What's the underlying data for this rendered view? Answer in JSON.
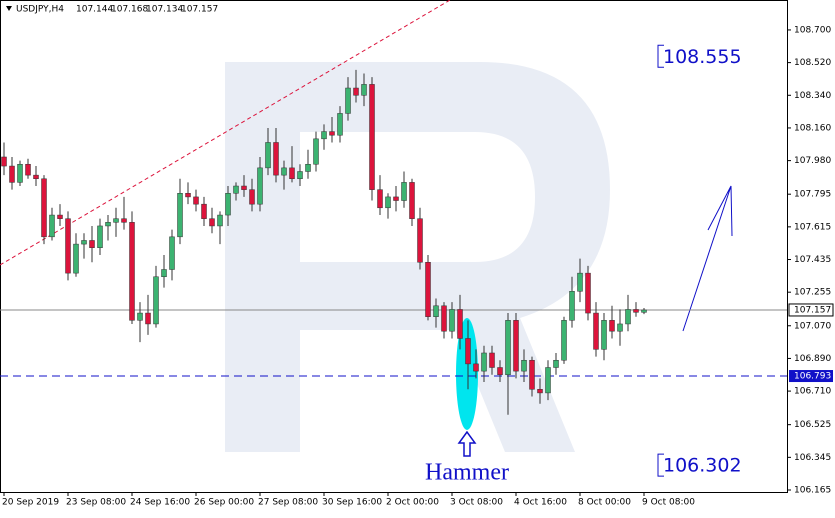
{
  "chart_data": {
    "type": "candlestick",
    "title": "USDJPY,H4",
    "categories": [
      "20 Sep 2019",
      null,
      null,
      null,
      null,
      null,
      null,
      null,
      "23 Sep 08:00",
      null,
      null,
      null,
      null,
      null,
      null,
      null,
      "24 Sep 16:00",
      null,
      null,
      null,
      null,
      null,
      null,
      null,
      "26 Sep 00:00",
      null,
      null,
      null,
      null,
      null,
      null,
      null,
      "27 Sep 08:00",
      null,
      null,
      null,
      null,
      null,
      null,
      null,
      "30 Sep 16:00",
      null,
      null,
      null,
      null,
      null,
      null,
      null,
      "2 Oct 00:00",
      null,
      null,
      null,
      null,
      null,
      null,
      null,
      "3 Oct 08:00",
      null,
      null,
      null,
      null,
      null,
      null,
      null,
      "4 Oct 16:00",
      null,
      null,
      null,
      null,
      null,
      null,
      null,
      "8 Oct 00:00",
      null,
      null,
      null,
      null,
      null,
      null,
      null,
      "9 Oct 08:00"
    ],
    "ohlc": [
      [
        108.0,
        108.08,
        107.9,
        107.95
      ],
      [
        107.95,
        108.0,
        107.82,
        107.86
      ],
      [
        107.86,
        107.98,
        107.84,
        107.96
      ],
      [
        107.96,
        107.99,
        107.88,
        107.9
      ],
      [
        107.9,
        107.95,
        107.84,
        107.88
      ],
      [
        107.88,
        107.9,
        107.52,
        107.56
      ],
      [
        107.56,
        107.72,
        107.54,
        107.68
      ],
      [
        107.68,
        107.74,
        107.62,
        107.66
      ],
      [
        107.66,
        107.7,
        107.32,
        107.36
      ],
      [
        107.36,
        107.58,
        107.34,
        107.52
      ],
      [
        107.52,
        107.58,
        107.44,
        107.54
      ],
      [
        107.54,
        107.62,
        107.42,
        107.5
      ],
      [
        107.5,
        107.66,
        107.46,
        107.62
      ],
      [
        107.62,
        107.68,
        107.54,
        107.64
      ],
      [
        107.64,
        107.72,
        107.56,
        107.66
      ],
      [
        107.66,
        107.78,
        107.6,
        107.64
      ],
      [
        107.64,
        107.7,
        107.08,
        107.1
      ],
      [
        107.1,
        107.2,
        106.98,
        107.14
      ],
      [
        107.14,
        107.24,
        107.02,
        107.08
      ],
      [
        107.08,
        107.4,
        107.06,
        107.34
      ],
      [
        107.34,
        107.46,
        107.28,
        107.38
      ],
      [
        107.38,
        107.6,
        107.32,
        107.56
      ],
      [
        107.56,
        107.88,
        107.52,
        107.8
      ],
      [
        107.8,
        107.86,
        107.74,
        107.78
      ],
      [
        107.78,
        107.82,
        107.7,
        107.74
      ],
      [
        107.74,
        107.78,
        107.62,
        107.66
      ],
      [
        107.66,
        107.72,
        107.58,
        107.62
      ],
      [
        107.62,
        107.7,
        107.52,
        107.68
      ],
      [
        107.68,
        107.84,
        107.62,
        107.8
      ],
      [
        107.8,
        107.86,
        107.76,
        107.84
      ],
      [
        107.84,
        107.9,
        107.78,
        107.82
      ],
      [
        107.82,
        107.88,
        107.7,
        107.74
      ],
      [
        107.74,
        108.0,
        107.7,
        107.94
      ],
      [
        107.94,
        108.16,
        107.9,
        108.08
      ],
      [
        108.08,
        108.16,
        107.86,
        107.9
      ],
      [
        107.9,
        107.98,
        107.82,
        107.94
      ],
      [
        107.94,
        108.06,
        107.86,
        107.88
      ],
      [
        107.88,
        107.96,
        107.84,
        107.92
      ],
      [
        107.92,
        108.04,
        107.88,
        107.96
      ],
      [
        107.96,
        108.14,
        107.92,
        108.1
      ],
      [
        108.1,
        108.18,
        108.04,
        108.14
      ],
      [
        108.14,
        108.22,
        108.08,
        108.12
      ],
      [
        108.12,
        108.28,
        108.08,
        108.24
      ],
      [
        108.24,
        108.44,
        108.2,
        108.38
      ],
      [
        108.38,
        108.48,
        108.3,
        108.34
      ],
      [
        108.34,
        108.46,
        108.28,
        108.4
      ],
      [
        108.4,
        108.44,
        107.76,
        107.82
      ],
      [
        107.82,
        107.9,
        107.68,
        107.72
      ],
      [
        107.72,
        107.8,
        107.66,
        107.78
      ],
      [
        107.78,
        107.84,
        107.7,
        107.76
      ],
      [
        107.76,
        107.92,
        107.72,
        107.86
      ],
      [
        107.86,
        107.88,
        107.62,
        107.66
      ],
      [
        107.66,
        107.72,
        107.38,
        107.42
      ],
      [
        107.42,
        107.46,
        107.1,
        107.12
      ],
      [
        107.12,
        107.22,
        107.06,
        107.18
      ],
      [
        107.18,
        107.2,
        107.0,
        107.04
      ],
      [
        107.04,
        107.2,
        107.0,
        107.16
      ],
      [
        107.16,
        107.24,
        106.94,
        107.0
      ],
      [
        107.0,
        107.1,
        106.72,
        106.86
      ],
      [
        106.86,
        106.94,
        106.78,
        106.82
      ],
      [
        106.82,
        106.96,
        106.76,
        106.92
      ],
      [
        106.92,
        106.96,
        106.8,
        106.84
      ],
      [
        106.84,
        106.88,
        106.76,
        106.8
      ],
      [
        106.8,
        107.14,
        106.58,
        107.1
      ],
      [
        107.1,
        107.14,
        106.78,
        106.82
      ],
      [
        106.82,
        106.94,
        106.76,
        106.88
      ],
      [
        106.88,
        106.9,
        106.68,
        106.72
      ],
      [
        106.72,
        106.78,
        106.64,
        106.7
      ],
      [
        106.7,
        106.88,
        106.66,
        106.84
      ],
      [
        106.84,
        106.92,
        106.8,
        106.88
      ],
      [
        106.88,
        107.12,
        106.86,
        107.1
      ],
      [
        107.1,
        107.34,
        107.06,
        107.26
      ],
      [
        107.26,
        107.44,
        107.2,
        107.36
      ],
      [
        107.36,
        107.4,
        107.1,
        107.14
      ],
      [
        107.14,
        107.2,
        106.9,
        106.94
      ],
      [
        106.94,
        107.14,
        106.88,
        107.1
      ],
      [
        107.1,
        107.18,
        107.0,
        107.04
      ],
      [
        107.04,
        107.16,
        106.96,
        107.08
      ],
      [
        107.08,
        107.24,
        107.04,
        107.16
      ],
      [
        107.16,
        107.2,
        107.12,
        107.144
      ],
      [
        107.144,
        107.168,
        107.134,
        107.157
      ]
    ],
    "up_color": "#3cb371",
    "down_color": "#dc143c",
    "ylim": [
      106.154,
      108.865
    ],
    "yticks": [
      {
        "value": 108.7,
        "label": "108.700"
      },
      {
        "value": 108.52,
        "label": "108.520"
      },
      {
        "value": 108.34,
        "label": "108.340"
      },
      {
        "value": 108.16,
        "label": "108.160"
      },
      {
        "value": 107.98,
        "label": "107.980"
      },
      107.795,
      107.615,
      107.435,
      107.255,
      {
        "value": 107.07,
        "label": "107.070"
      },
      {
        "value": 106.89,
        "label": "106.890"
      },
      {
        "value": 106.71,
        "label": "106.710"
      },
      106.525,
      106.345,
      106.165
    ],
    "support": 106.793,
    "targets": [
      108.555,
      106.302
    ],
    "annotation": "Hammer"
  }
}
